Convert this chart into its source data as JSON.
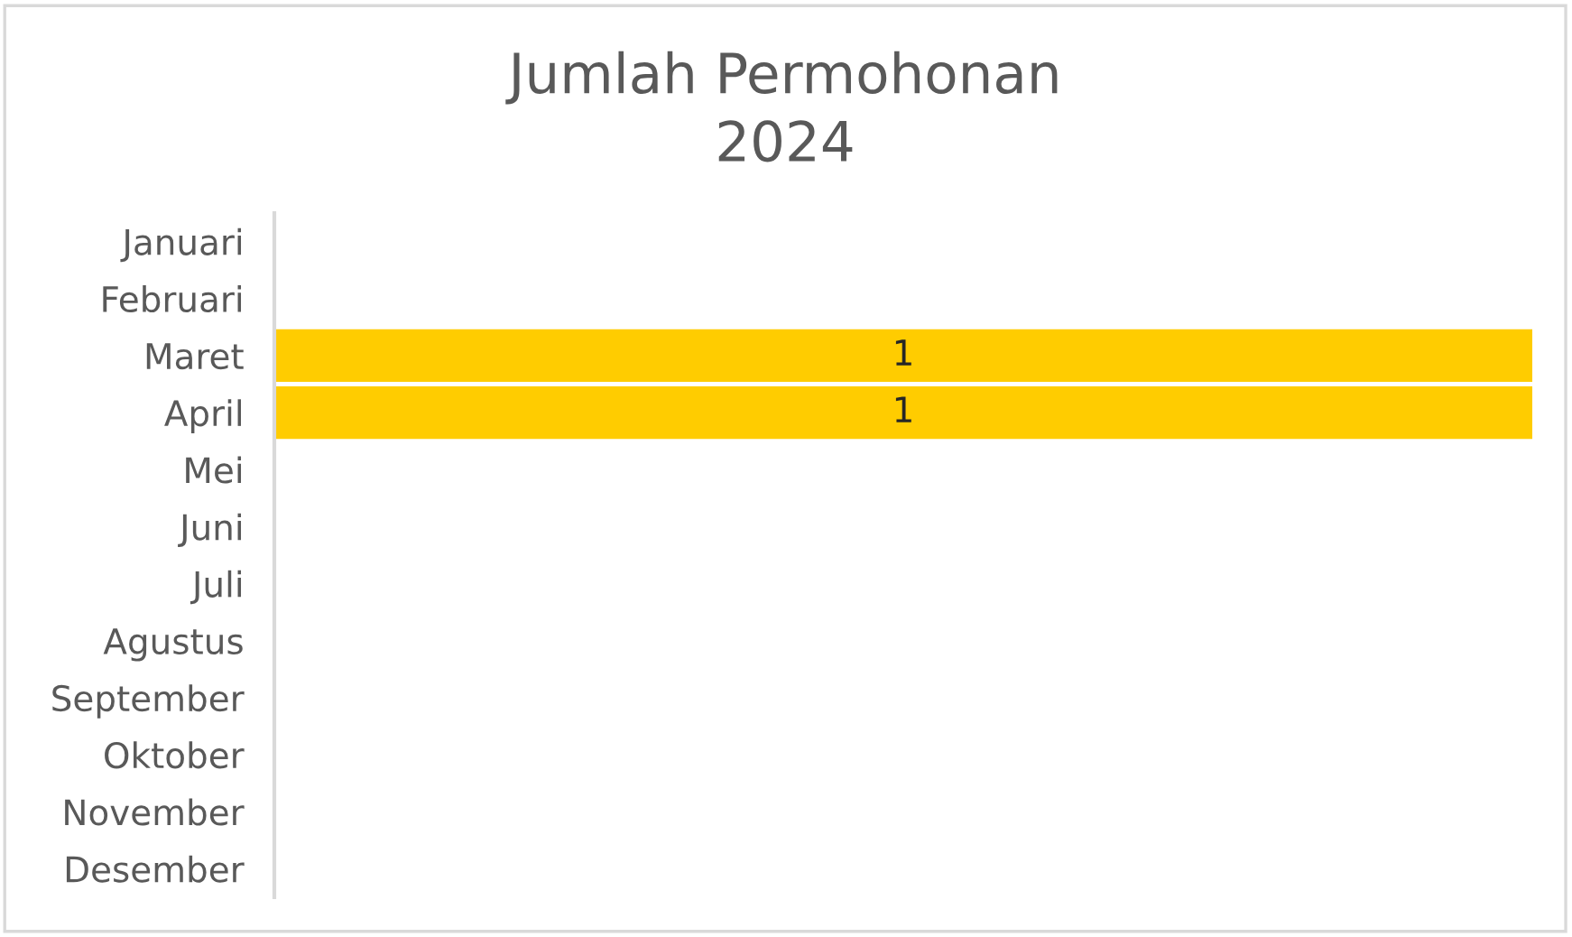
{
  "chart_data": {
    "type": "bar",
    "title": "Jumlah Permohonan\n2024",
    "categories": [
      "Januari",
      "Februari",
      "Maret",
      "April",
      "Mei",
      "Juni",
      "Juli",
      "Agustus",
      "September",
      "Oktober",
      "November",
      "Desember"
    ],
    "values": [
      null,
      null,
      1,
      1,
      null,
      null,
      null,
      null,
      null,
      null,
      null,
      null
    ],
    "color": "#ffcc00",
    "orientation": "horizontal",
    "tick_labels": "y",
    "data_labels": true
  }
}
